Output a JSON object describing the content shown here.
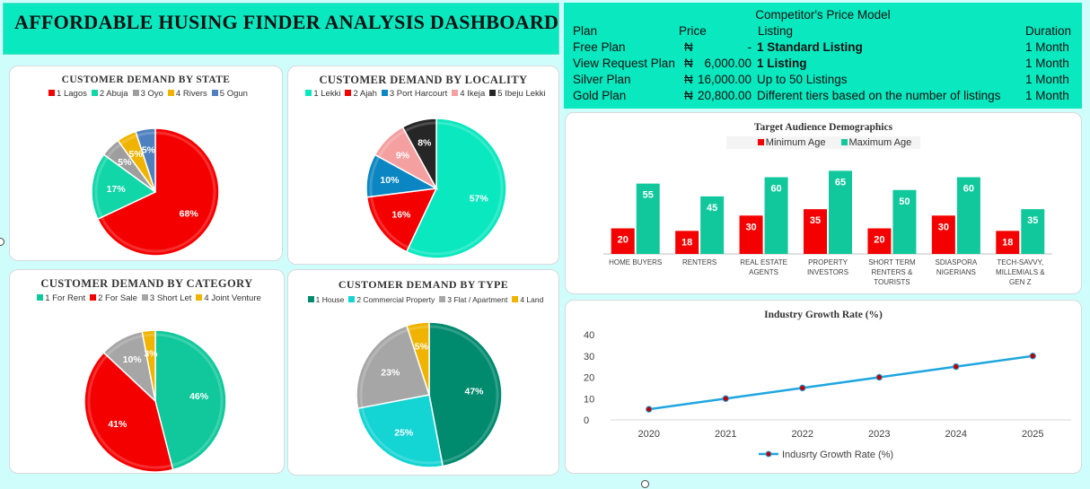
{
  "dashboard_title": "AFFORDABLE HUSING FINDER ANALYSIS DASHBOARD",
  "price_model": {
    "caption": "Competitor's Price Model",
    "headers": {
      "plan": "Plan",
      "price": "Price",
      "listing": "Listing",
      "duration": "Duration"
    },
    "currency": "₦",
    "rows": [
      {
        "plan": "Free Plan",
        "price": "-",
        "listing": "1 Standard Listing",
        "listing_bold": true,
        "duration": "1 Month"
      },
      {
        "plan": "View Request Plan",
        "price": "6,000.00",
        "listing": "1 Listing",
        "listing_bold": true,
        "duration": "1 Month"
      },
      {
        "plan": "Silver Plan",
        "price": "16,000.00",
        "listing": "Up to 50 Listings",
        "listing_bold": false,
        "duration": "1 Month"
      },
      {
        "plan": "Gold Plan",
        "price": "20,800.00",
        "listing": "Different tiers based on the number of listings",
        "listing_bold": false,
        "duration": "1 Month"
      }
    ]
  },
  "chart_data": [
    {
      "type": "pie",
      "title": "CUSTOMER DEMAND BY STATE",
      "legend_position": "top",
      "slices": [
        {
          "label": "1 Lagos",
          "value": 68,
          "display": "68%",
          "color": "#f50000"
        },
        {
          "label": "2 Abuja",
          "value": 17,
          "display": "17%",
          "color": "#10d6a8"
        },
        {
          "label": "3 Oyo",
          "value": 5,
          "display": "5%",
          "color": "#9e9e9e"
        },
        {
          "label": "4 Rivers",
          "value": 5,
          "display": "5%",
          "color": "#f0b400"
        },
        {
          "label": "5 Ogun",
          "value": 5,
          "display": "5%",
          "color": "#4e80bf"
        }
      ]
    },
    {
      "type": "pie",
      "title": "CUSTOMER DEMAND BY LOCALITY",
      "legend_position": "top",
      "slices": [
        {
          "label": "1 Lekki",
          "value": 57,
          "display": "57%",
          "color": "#0ae8bf"
        },
        {
          "label": "2 Ajah",
          "value": 16,
          "display": "16%",
          "color": "#f50000"
        },
        {
          "label": "3 Port Harcourt",
          "value": 10,
          "display": "10%",
          "color": "#0b86c2"
        },
        {
          "label": "4 Ikeja",
          "value": 9,
          "display": "9%",
          "color": "#f4a0a0"
        },
        {
          "label": "5 Ibeju Lekki",
          "value": 8,
          "display": "8%",
          "color": "#262626"
        }
      ]
    },
    {
      "type": "pie",
      "title": "CUSTOMER DEMAND BY CATEGORY",
      "legend_position": "top",
      "slices": [
        {
          "label": "1 For Rent",
          "value": 46,
          "display": "46%",
          "color": "#10c89c"
        },
        {
          "label": "2 For Sale",
          "value": 41,
          "display": "41%",
          "color": "#f50000"
        },
        {
          "label": "3 Short Let",
          "value": 10,
          "display": "10%",
          "color": "#a6a6a6"
        },
        {
          "label": "4 Joint Venture",
          "value": 3,
          "display": "3%",
          "color": "#f0b400"
        }
      ]
    },
    {
      "type": "pie",
      "title": "CUSTOMER DEMAND BY TYPE",
      "legend_position": "top",
      "slices": [
        {
          "label": "1 House",
          "value": 47,
          "display": "47%",
          "color": "#008a6e"
        },
        {
          "label": "2 Commercial Property",
          "value": 25,
          "display": "25%",
          "color": "#14d4d4"
        },
        {
          "label": "3 Flat / Apartment",
          "value": 23,
          "display": "23%",
          "color": "#a6a6a6"
        },
        {
          "label": "4 Land",
          "value": 5,
          "display": "5%",
          "color": "#f0b400"
        }
      ]
    },
    {
      "type": "bar",
      "title": "Target Audience Demographics",
      "legend_position": "top",
      "categories": [
        "HOME BUYERS",
        "RENTERS",
        "REAL ESTATE AGENTS",
        "PROPERTY INVESTORS",
        "SHORT TERM RENTERS & TOURISTS",
        "SDIASPORA NIGERIANS",
        "TECH-SAVVY, MILLEMIALS & GEN Z"
      ],
      "category_lines": [
        [
          "HOME BUYERS"
        ],
        [
          "RENTERS"
        ],
        [
          "REAL ESTATE",
          "AGENTS"
        ],
        [
          "PROPERTY",
          "INVESTORS"
        ],
        [
          "SHORT TERM",
          "RENTERS &",
          "TOURISTS"
        ],
        [
          "SDIASPORA",
          "NIGERIANS"
        ],
        [
          "TECH-SAVVY,",
          "MILLEMIALS &",
          "GEN Z"
        ]
      ],
      "series": [
        {
          "name": "Minimum Age",
          "color": "#f50000",
          "values": [
            20,
            18,
            30,
            35,
            20,
            30,
            18
          ]
        },
        {
          "name": "Maximum Age",
          "color": "#10c89c",
          "values": [
            55,
            45,
            60,
            65,
            50,
            60,
            35
          ]
        }
      ],
      "ylim": [
        0,
        70
      ]
    },
    {
      "type": "line",
      "title": "Industry Growth Rate (%)",
      "legend_position": "bottom",
      "x": [
        "2020",
        "2021",
        "2022",
        "2023",
        "2024",
        "2025"
      ],
      "series": [
        {
          "name": "Indusrty Growth Rate (%)",
          "color": "#1ea6e0",
          "marker_color": "#c00000",
          "values": [
            5,
            10,
            15,
            20,
            25,
            30
          ]
        }
      ],
      "yticks": [
        "0",
        "10",
        "20",
        "30",
        "40"
      ],
      "ylim": [
        0,
        40
      ]
    }
  ]
}
